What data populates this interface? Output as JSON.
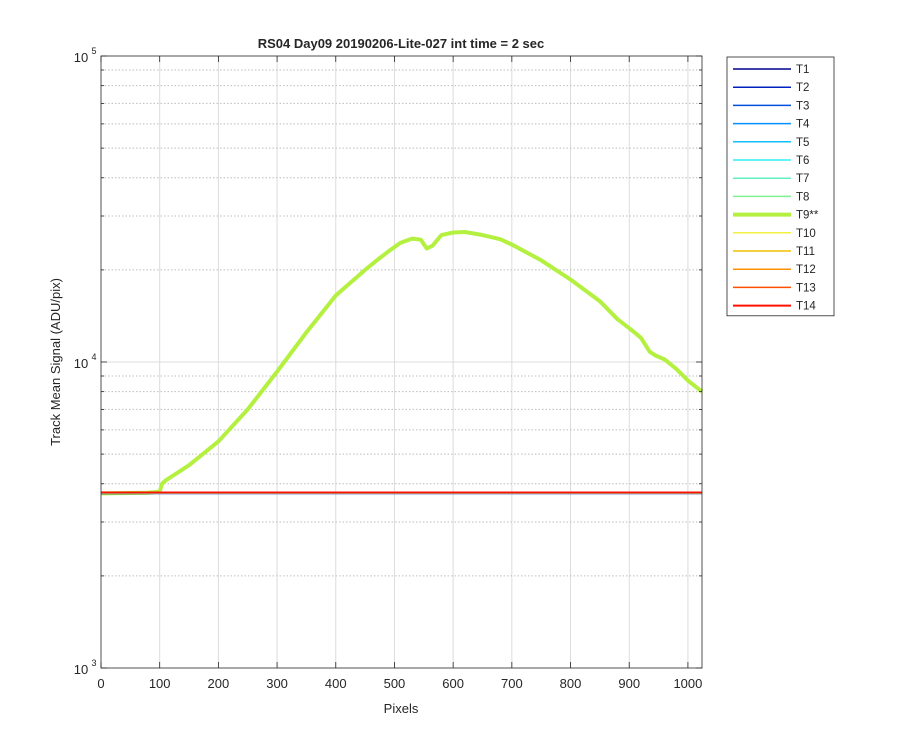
{
  "chart_data": {
    "type": "line",
    "title": "RS04 Day09 20190206-Lite-027 int time = 2 sec",
    "xlabel": "Pixels",
    "ylabel": "Track Mean Signal (ADU/pix)",
    "xlim": [
      0,
      1024
    ],
    "ylim": [
      1000,
      100000
    ],
    "yscale": "log",
    "xticks": [
      0,
      100,
      200,
      300,
      400,
      500,
      600,
      700,
      800,
      900,
      1000
    ],
    "xtick_labels": [
      "0",
      "100",
      "200",
      "300",
      "400",
      "500",
      "600",
      "700",
      "800",
      "900",
      "1000"
    ],
    "ytick_labels": [
      {
        "value": 1000,
        "base": "10",
        "exp": "3"
      },
      {
        "value": 10000,
        "base": "10",
        "exp": "4"
      },
      {
        "value": 100000,
        "base": "10",
        "exp": "5"
      }
    ],
    "grid": true,
    "legend_position": "outside-right",
    "series": [
      {
        "name": "T1",
        "color": "#00008f",
        "width": 1.5,
        "x": [
          0,
          1024
        ],
        "y": [
          3720,
          3720
        ]
      },
      {
        "name": "T2",
        "color": "#0020c0",
        "width": 1.5,
        "x": [
          0,
          1024
        ],
        "y": [
          3722,
          3722
        ]
      },
      {
        "name": "T3",
        "color": "#0050e0",
        "width": 1.5,
        "x": [
          0,
          1024
        ],
        "y": [
          3724,
          3724
        ]
      },
      {
        "name": "T4",
        "color": "#0090ff",
        "width": 1.5,
        "x": [
          0,
          1024
        ],
        "y": [
          3726,
          3726
        ]
      },
      {
        "name": "T5",
        "color": "#10c0ff",
        "width": 1.5,
        "x": [
          0,
          1024
        ],
        "y": [
          3728,
          3728
        ]
      },
      {
        "name": "T6",
        "color": "#30f0ef",
        "width": 1.5,
        "x": [
          0,
          1024
        ],
        "y": [
          3730,
          3730
        ]
      },
      {
        "name": "T7",
        "color": "#60f0c0",
        "width": 1.5,
        "x": [
          0,
          1024
        ],
        "y": [
          3732,
          3732
        ]
      },
      {
        "name": "T8",
        "color": "#80f090",
        "width": 1.5,
        "x": [
          0,
          1024
        ],
        "y": [
          3734,
          3734
        ]
      },
      {
        "name": "T9**",
        "color": "#b4f040",
        "width": 4,
        "x": [
          0,
          80,
          100,
          104,
          110,
          150,
          200,
          250,
          300,
          350,
          400,
          450,
          470,
          490,
          510,
          530,
          545,
          555,
          565,
          580,
          600,
          620,
          650,
          680,
          700,
          750,
          800,
          850,
          880,
          900,
          920,
          935,
          945,
          960,
          980,
          1000,
          1024
        ],
        "y": [
          3720,
          3740,
          3770,
          4000,
          4100,
          4600,
          5500,
          7000,
          9300,
          12500,
          16500,
          20000,
          21500,
          23000,
          24500,
          25300,
          25100,
          23500,
          24000,
          26000,
          26500,
          26600,
          26000,
          25200,
          24200,
          21500,
          18600,
          15800,
          13800,
          12900,
          12000,
          10800,
          10500,
          10200,
          9500,
          8700,
          8000
        ]
      },
      {
        "name": "T10",
        "color": "#f0f040",
        "width": 1.5,
        "x": [
          0,
          1024
        ],
        "y": [
          3736,
          3736
        ]
      },
      {
        "name": "T11",
        "color": "#f0c000",
        "width": 1.5,
        "x": [
          0,
          1024
        ],
        "y": [
          3738,
          3738
        ]
      },
      {
        "name": "T12",
        "color": "#ff9000",
        "width": 1.5,
        "x": [
          0,
          1024
        ],
        "y": [
          3740,
          3740
        ]
      },
      {
        "name": "T13",
        "color": "#ff5000",
        "width": 1.5,
        "x": [
          0,
          1024
        ],
        "y": [
          3742,
          3742
        ]
      },
      {
        "name": "T14",
        "color": "#ff1000",
        "width": 2,
        "x": [
          0,
          1024
        ],
        "y": [
          3744,
          3744
        ]
      }
    ]
  }
}
